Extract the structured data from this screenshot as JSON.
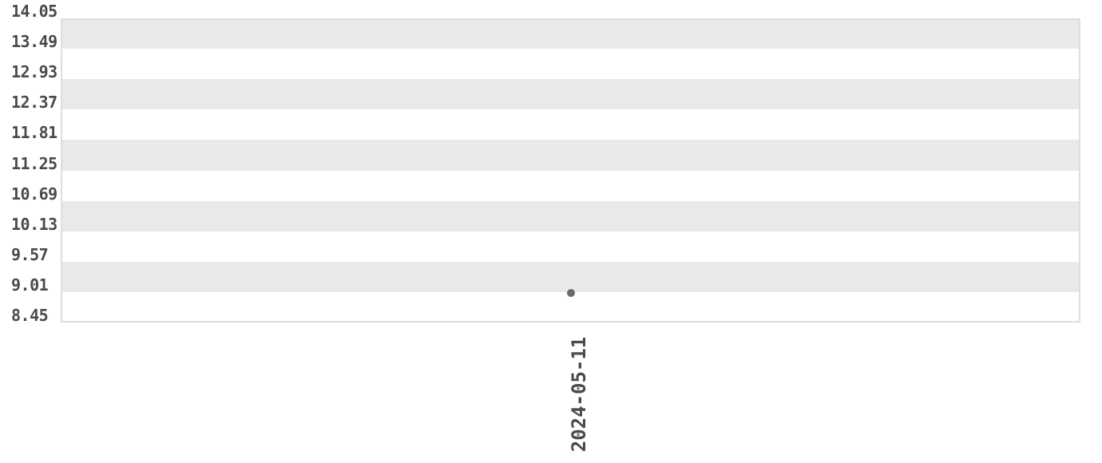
{
  "chart_data": {
    "type": "scatter",
    "title": "",
    "xlabel": "",
    "ylabel": "",
    "x_tick_labels": [
      "2024-05-11"
    ],
    "x_tick_rotation_deg": 90,
    "series": [
      {
        "name": "points",
        "x": [
          "2024-05-11"
        ],
        "values": [
          9.0
        ]
      }
    ],
    "y_tick_labels": [
      "14.05",
      "13.49",
      "12.93",
      "12.37",
      "11.81",
      "11.25",
      "10.69",
      "10.13",
      "9.57",
      "9.01",
      "8.45"
    ],
    "ylim": [
      8.45,
      14.05
    ],
    "grid": "alternating-horizontal-bands",
    "legend": "none",
    "colors": {
      "band": "#e9e9e9",
      "band_alt": "#ffffff",
      "plot_border": "#dedede",
      "tick_label": "#4a4a4a",
      "point": "#6b6b6b",
      "background": "#ffffff"
    }
  }
}
